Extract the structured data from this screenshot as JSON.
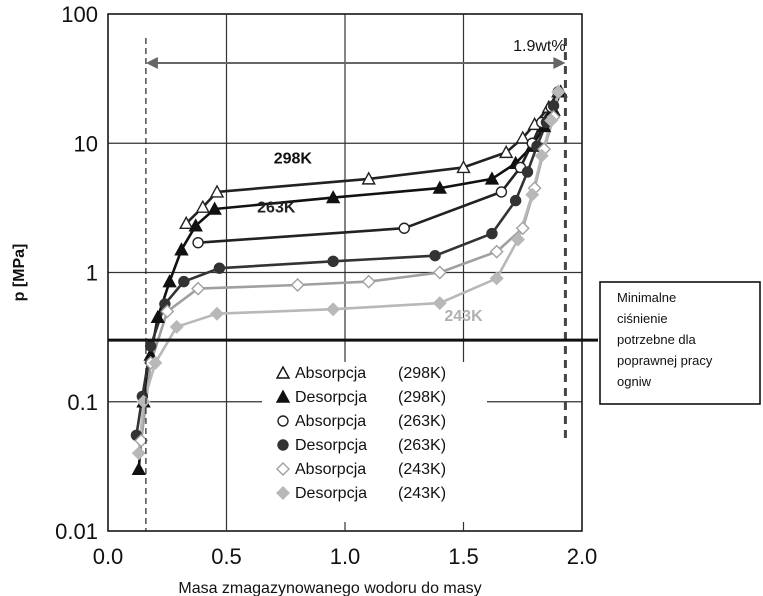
{
  "chart_data": {
    "type": "line",
    "xlabel": "Masa zmagazynowanego wodoru do masy",
    "ylabel": "p [MPa]",
    "xlim": [
      0.0,
      2.0
    ],
    "ylim": [
      0.01,
      100
    ],
    "yscale": "log",
    "grid": true,
    "x_ticks": [
      "0.0",
      "0.5",
      "1.0",
      "1.5",
      "2.0"
    ],
    "y_ticks": [
      "0.01",
      "0.1",
      "1",
      "10",
      "100"
    ],
    "range_annotation": {
      "label": "1.9wt%",
      "x_start": 0.16,
      "x_end": 1.93
    },
    "threshold": {
      "y": 0.3,
      "label_lines": [
        "Minimalne",
        "ciśnienie",
        "potrzebne dla",
        "poprawnej pracy",
        "ogniw"
      ]
    },
    "curve_labels": [
      {
        "text": "298K",
        "x": 0.78,
        "y": 7.0,
        "color": "#111111"
      },
      {
        "text": "263K",
        "x": 0.71,
        "y": 2.9,
        "color": "#222222"
      },
      {
        "text": "243K",
        "x": 1.5,
        "y": 0.42,
        "color": "#b0b0b0"
      }
    ],
    "legend": {
      "placement": "bottom-center",
      "entries": [
        {
          "marker": "triangle-open",
          "label": "Absorpcja",
          "temp": "(298K)"
        },
        {
          "marker": "triangle-filled",
          "label": "Desorpcja",
          "temp": "(298K)"
        },
        {
          "marker": "circle-open",
          "label": "Absorpcja",
          "temp": "(263K)"
        },
        {
          "marker": "circle-filled",
          "label": "Desorpcja",
          "temp": "(263K)"
        },
        {
          "marker": "diamond-open",
          "label": "Absorpcja",
          "temp": "(243K)"
        },
        {
          "marker": "diamond-filled",
          "label": "Desorpcja",
          "temp": "(243K)"
        }
      ]
    },
    "series": [
      {
        "marker": "triangle-open",
        "color": "#222222",
        "x": [
          0.33,
          0.4,
          0.46,
          1.1,
          1.5,
          1.68,
          1.75,
          1.8,
          1.86,
          1.9
        ],
        "y": [
          2.4,
          3.2,
          4.2,
          5.3,
          6.5,
          8.5,
          11,
          14,
          19,
          25
        ]
      },
      {
        "marker": "triangle-filled",
        "color": "#111111",
        "x": [
          0.13,
          0.15,
          0.18,
          0.21,
          0.26,
          0.31,
          0.37,
          0.45,
          0.95,
          1.4,
          1.62,
          1.72,
          1.79,
          1.84,
          1.88,
          1.91
        ],
        "y": [
          0.03,
          0.1,
          0.23,
          0.45,
          0.85,
          1.5,
          2.3,
          3.1,
          3.8,
          4.5,
          5.3,
          7.0,
          9.5,
          13.5,
          18,
          25
        ]
      },
      {
        "marker": "circle-open",
        "color": "#222222",
        "x": [
          0.38,
          1.25,
          1.66,
          1.74,
          1.79,
          1.83,
          1.87,
          1.9
        ],
        "y": [
          1.7,
          2.2,
          4.2,
          6.5,
          10,
          14.5,
          19,
          25
        ]
      },
      {
        "marker": "circle-filled",
        "color": "#333333",
        "x": [
          0.12,
          0.145,
          0.18,
          0.24,
          0.32,
          0.47,
          0.95,
          1.38,
          1.62,
          1.72,
          1.77,
          1.81,
          1.85,
          1.88,
          1.9
        ],
        "y": [
          0.055,
          0.11,
          0.27,
          0.57,
          0.85,
          1.08,
          1.22,
          1.35,
          2.0,
          3.6,
          6.0,
          9.5,
          14.5,
          19.5,
          25
        ]
      },
      {
        "marker": "diamond-open",
        "color": "#a0a0a0",
        "x": [
          0.14,
          0.18,
          0.25,
          0.38,
          0.8,
          1.1,
          1.4,
          1.64,
          1.75,
          1.8,
          1.84,
          1.88,
          1.9
        ],
        "y": [
          0.05,
          0.2,
          0.5,
          0.75,
          0.8,
          0.85,
          1.0,
          1.45,
          2.2,
          4.5,
          9.0,
          16,
          25
        ]
      },
      {
        "marker": "diamond-filled",
        "color": "#b8b8b8",
        "x": [
          0.13,
          0.15,
          0.2,
          0.29,
          0.46,
          0.95,
          1.4,
          1.64,
          1.73,
          1.79,
          1.83,
          1.87,
          1.9
        ],
        "y": [
          0.04,
          0.1,
          0.2,
          0.38,
          0.48,
          0.52,
          0.58,
          0.9,
          1.8,
          4.0,
          8.0,
          15,
          25
        ]
      }
    ]
  }
}
